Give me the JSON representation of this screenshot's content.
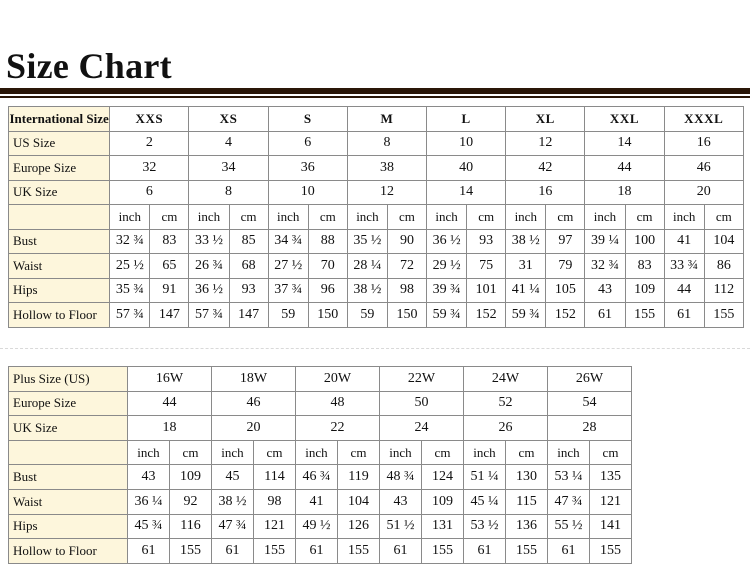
{
  "title": "Size Chart",
  "chart1": {
    "header_label": "International Size",
    "sizes": [
      "XXS",
      "XS",
      "S",
      "M",
      "L",
      "XL",
      "XXL",
      "XXXL"
    ],
    "rows": [
      {
        "label": "US Size",
        "values": [
          "2",
          "4",
          "6",
          "8",
          "10",
          "12",
          "14",
          "16"
        ]
      },
      {
        "label": "Europe Size",
        "values": [
          "32",
          "34",
          "36",
          "38",
          "40",
          "42",
          "44",
          "46"
        ]
      },
      {
        "label": "UK Size",
        "values": [
          "6",
          "8",
          "10",
          "12",
          "14",
          "16",
          "18",
          "20"
        ]
      }
    ],
    "units": [
      "inch",
      "cm"
    ],
    "measure_rows": [
      {
        "label": "Bust",
        "values": [
          "32 ¾",
          "83",
          "33 ½",
          "85",
          "34 ¾",
          "88",
          "35 ½",
          "90",
          "36 ½",
          "93",
          "38 ½",
          "97",
          "39 ¼",
          "100",
          "41",
          "104"
        ]
      },
      {
        "label": "Waist",
        "values": [
          "25 ½",
          "65",
          "26 ¾",
          "68",
          "27 ½",
          "70",
          "28 ¼",
          "72",
          "29 ½",
          "75",
          "31",
          "79",
          "32 ¾",
          "83",
          "33 ¾",
          "86"
        ]
      },
      {
        "label": "Hips",
        "values": [
          "35 ¾",
          "91",
          "36 ½",
          "93",
          "37 ¾",
          "96",
          "38 ½",
          "98",
          "39 ¾",
          "101",
          "41 ¼",
          "105",
          "43",
          "109",
          "44",
          "112"
        ]
      },
      {
        "label": "Hollow to Floor",
        "values": [
          "57 ¾",
          "147",
          "57 ¾",
          "147",
          "59",
          "150",
          "59",
          "150",
          "59 ¾",
          "152",
          "59 ¾",
          "152",
          "61",
          "155",
          "61",
          "155"
        ]
      }
    ]
  },
  "chart2": {
    "sizes": [
      "16W",
      "18W",
      "20W",
      "22W",
      "24W",
      "26W"
    ],
    "rows": [
      {
        "label": "Plus Size (US)",
        "values": [
          "16W",
          "18W",
          "20W",
          "22W",
          "24W",
          "26W"
        ]
      },
      {
        "label": "Europe Size",
        "values": [
          "44",
          "46",
          "48",
          "50",
          "52",
          "54"
        ]
      },
      {
        "label": "UK Size",
        "values": [
          "18",
          "20",
          "22",
          "24",
          "26",
          "28"
        ]
      }
    ],
    "units": [
      "inch",
      "cm"
    ],
    "measure_rows": [
      {
        "label": "Bust",
        "values": [
          "43",
          "109",
          "45",
          "114",
          "46 ¾",
          "119",
          "48 ¾",
          "124",
          "51 ¼",
          "130",
          "53 ¼",
          "135"
        ]
      },
      {
        "label": "Waist",
        "values": [
          "36 ¼",
          "92",
          "38 ½",
          "98",
          "41",
          "104",
          "43",
          "109",
          "45 ¼",
          "115",
          "47 ¾",
          "121"
        ]
      },
      {
        "label": "Hips",
        "values": [
          "45 ¾",
          "116",
          "47 ¾",
          "121",
          "49 ½",
          "126",
          "51 ½",
          "131",
          "53 ½",
          "136",
          "55 ½",
          "141"
        ]
      },
      {
        "label": "Hollow to Floor",
        "values": [
          "61",
          "155",
          "61",
          "155",
          "61",
          "155",
          "61",
          "155",
          "61",
          "155",
          "61",
          "155"
        ]
      }
    ]
  }
}
